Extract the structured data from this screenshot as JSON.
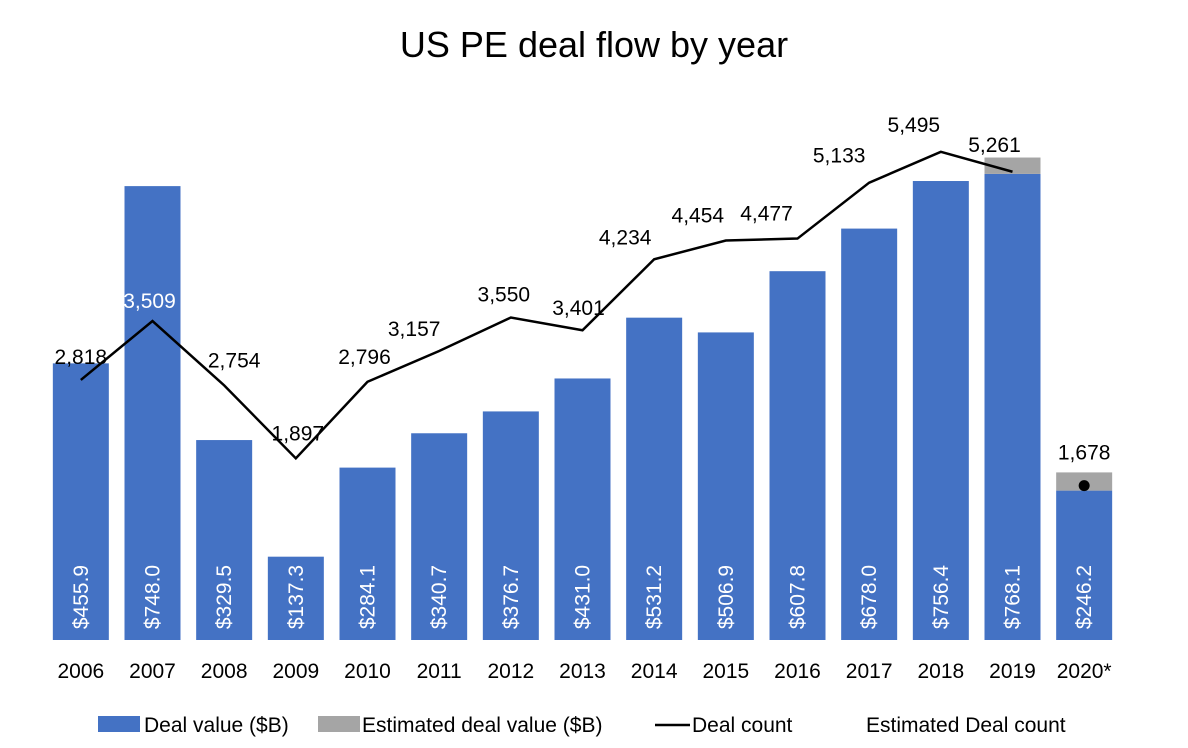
{
  "chart_data": {
    "type": "bar",
    "title": "US PE deal flow by year",
    "categories": [
      "2006",
      "2007",
      "2008",
      "2009",
      "2010",
      "2011",
      "2012",
      "2013",
      "2014",
      "2015",
      "2016",
      "2017",
      "2018",
      "2019",
      "2020*"
    ],
    "series": [
      {
        "name": "Deal value ($B)",
        "type": "bar",
        "color": "#4472C4",
        "values": [
          455.9,
          748.0,
          329.5,
          137.3,
          284.1,
          340.7,
          376.7,
          431.0,
          531.2,
          506.9,
          607.8,
          678.0,
          756.4,
          768.1,
          246.2
        ],
        "labels": [
          "$455.9",
          "$748.0",
          "$329.5",
          "$137.3",
          "$284.1",
          "$340.7",
          "$376.7",
          "$431.0",
          "$531.2",
          "$506.9",
          "$607.8",
          "$678.0",
          "$756.4",
          "$768.1",
          "$246.2"
        ]
      },
      {
        "name": "Estimated deal value ($B)",
        "type": "bar-stacked",
        "color": "#A5A5A5",
        "values": [
          null,
          null,
          null,
          null,
          null,
          null,
          null,
          null,
          null,
          null,
          null,
          null,
          null,
          27,
          30
        ]
      },
      {
        "name": "Deal count",
        "type": "line",
        "color": "#000000",
        "values": [
          2818,
          3509,
          2754,
          1897,
          2796,
          3157,
          3550,
          3401,
          4234,
          4454,
          4477,
          5133,
          5495,
          5261,
          null
        ],
        "labels": [
          "2,818",
          "3,509",
          "2,754",
          "1,897",
          "2,796",
          "3,157",
          "3,550",
          "3,401",
          "4,234",
          "4,454",
          "4,477",
          "5,133",
          "5,495",
          "5,261",
          ""
        ]
      },
      {
        "name": "Estimated Deal count",
        "type": "point",
        "color": "#000000",
        "values": [
          null,
          null,
          null,
          null,
          null,
          null,
          null,
          null,
          null,
          null,
          null,
          null,
          null,
          null,
          1678
        ],
        "labels": [
          "",
          "",
          "",
          "",
          "",
          "",
          "",
          "",
          "",
          "",
          "",
          "",
          "",
          "",
          "1,678"
        ]
      }
    ],
    "yaxis_value": {
      "min": 0,
      "max": 900
    },
    "yaxis_count": {
      "min": 0,
      "max": 6000
    },
    "grid": false,
    "legend": "bottom"
  }
}
